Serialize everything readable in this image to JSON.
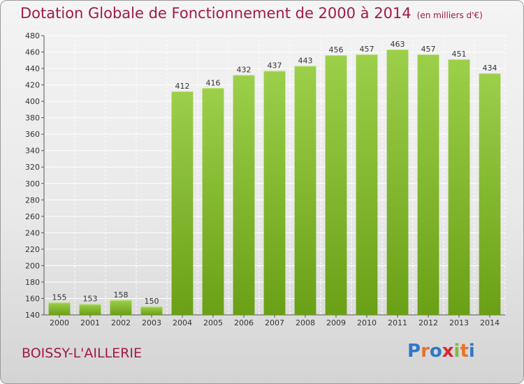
{
  "header": {
    "title": "Dotation Globale de Fonctionnement de 2000 à 2014",
    "unit": "(en milliers d'€)"
  },
  "footer": {
    "commune": "BOISSY-L'AILLERIE",
    "logo_text": "Proxiti",
    "logo_letters": [
      {
        "ch": "P",
        "color": "#2f78c8"
      },
      {
        "ch": "r",
        "color": "#e8732a"
      },
      {
        "ch": "o",
        "color": "#2f78c8"
      },
      {
        "ch": "x",
        "color": "#d9262c"
      },
      {
        "ch": "i",
        "color": "#86b93a"
      },
      {
        "ch": "t",
        "color": "#e8732a"
      },
      {
        "ch": "i",
        "color": "#2f78c8"
      }
    ]
  },
  "chart_data": {
    "type": "bar",
    "title": "Dotation Globale de Fonctionnement de 2000 à 2014",
    "subtitle": "(en milliers d'€)",
    "xlabel": "",
    "ylabel": "",
    "categories": [
      "2000",
      "2001",
      "2002",
      "2003",
      "2004",
      "2005",
      "2006",
      "2007",
      "2008",
      "2009",
      "2010",
      "2011",
      "2012",
      "2013",
      "2014"
    ],
    "values": [
      155,
      153,
      158,
      150,
      412,
      416,
      432,
      437,
      443,
      456,
      457,
      463,
      457,
      451,
      434
    ],
    "ylim": [
      140,
      480
    ],
    "yticks": [
      140,
      160,
      180,
      200,
      220,
      240,
      260,
      280,
      300,
      320,
      340,
      360,
      380,
      400,
      420,
      440,
      460,
      480
    ],
    "grid": true,
    "bar_color_top": "#9ccf4a",
    "bar_color_bottom": "#6aa016",
    "grid_color": "#ffffff",
    "text_color": "#333333",
    "title_color": "#a0194a"
  }
}
